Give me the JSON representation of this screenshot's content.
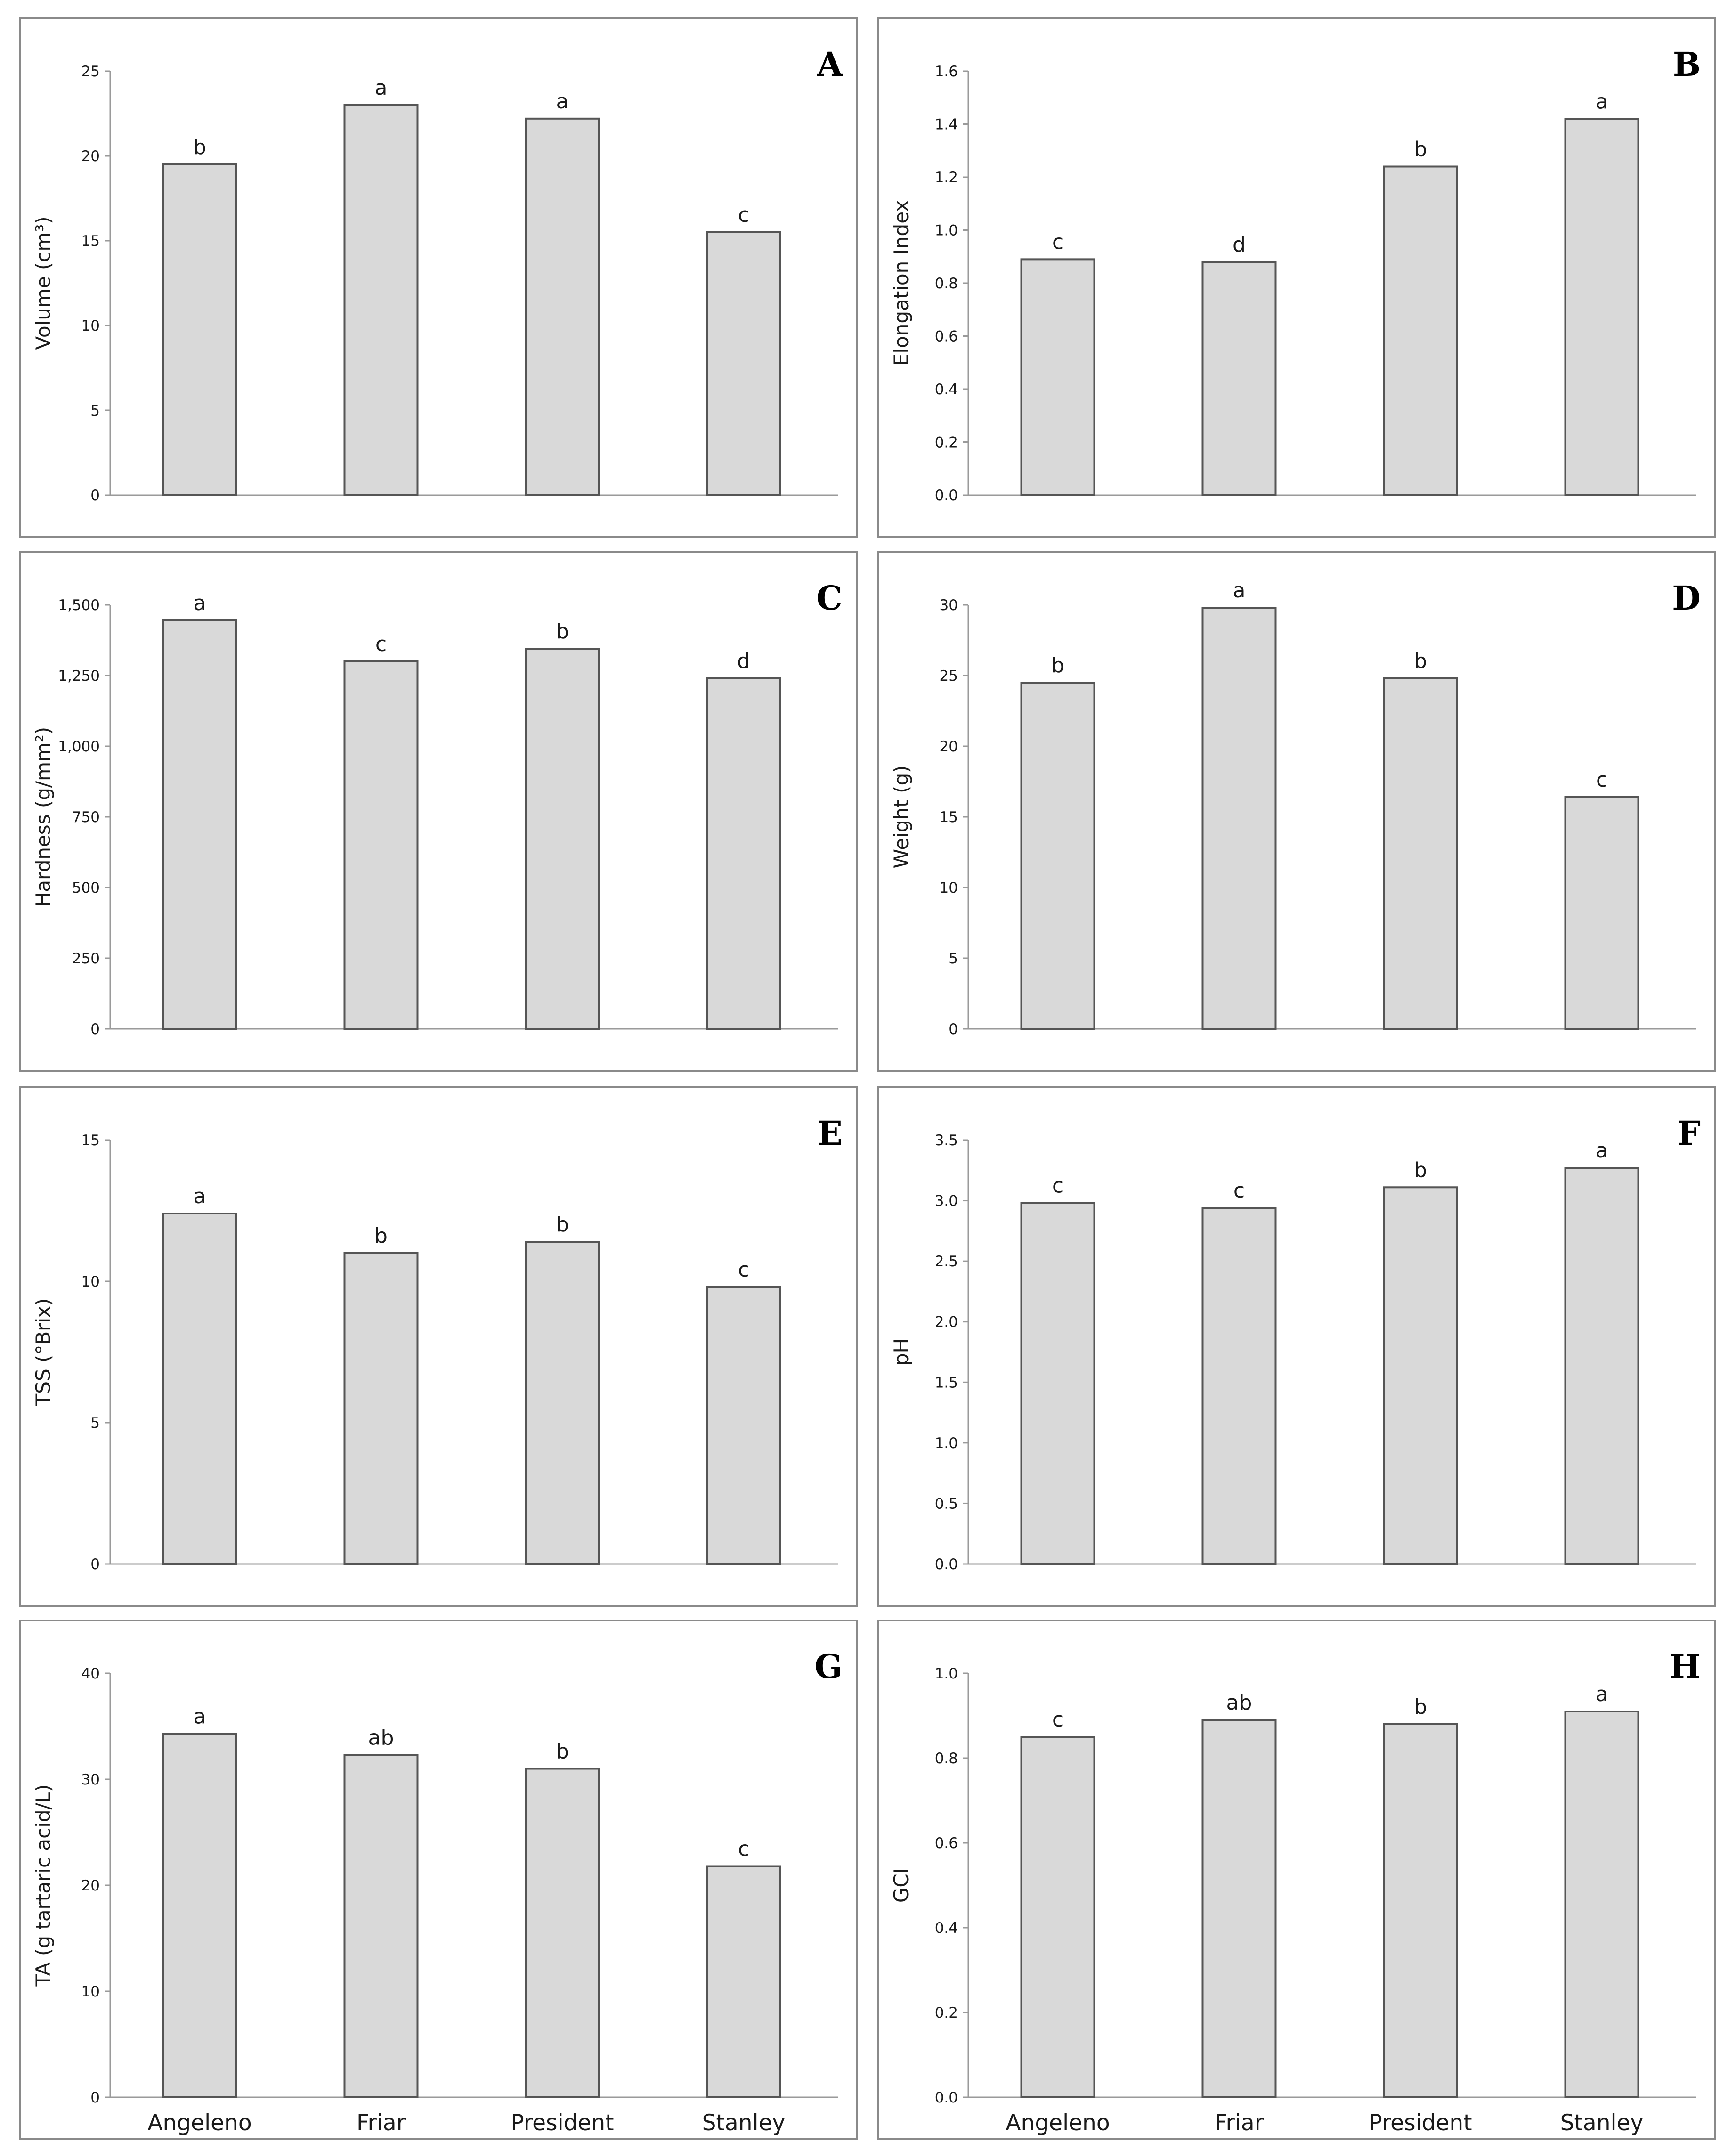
{
  "figure": {
    "categories": [
      "Angeleno",
      "Friar",
      "President",
      "Stanley"
    ]
  },
  "chart_data": [
    {
      "panel": "A",
      "type": "bar",
      "categories": [
        "Angeleno",
        "Friar",
        "President",
        "Stanley"
      ],
      "values": [
        19.5,
        23.0,
        22.2,
        15.5
      ],
      "significance": [
        "b",
        "a",
        "a",
        "c"
      ],
      "ylabel": "Volume (cm³)",
      "ylim": [
        0,
        25
      ],
      "yticks": [
        "0",
        "5",
        "10",
        "15",
        "20",
        "25"
      ],
      "ytick_values": [
        0,
        5,
        10,
        15,
        20,
        25
      ],
      "show_xticklabels": false
    },
    {
      "panel": "B",
      "type": "bar",
      "categories": [
        "Angeleno",
        "Friar",
        "President",
        "Stanley"
      ],
      "values": [
        0.89,
        0.88,
        1.24,
        1.42
      ],
      "significance": [
        "c",
        "d",
        "b",
        "a"
      ],
      "ylabel": "Elongation Index",
      "ylim": [
        0,
        1.6
      ],
      "yticks": [
        "0.0",
        "0.2",
        "0.4",
        "0.6",
        "0.8",
        "1.0",
        "1.2",
        "1.4",
        "1.6"
      ],
      "ytick_values": [
        0,
        0.2,
        0.4,
        0.6,
        0.8,
        1.0,
        1.2,
        1.4,
        1.6
      ],
      "show_xticklabels": false
    },
    {
      "panel": "C",
      "type": "bar",
      "categories": [
        "Angeleno",
        "Friar",
        "President",
        "Stanley"
      ],
      "values": [
        1445,
        1300,
        1345,
        1240
      ],
      "significance": [
        "a",
        "c",
        "b",
        "d"
      ],
      "ylabel": "Hardness (g/mm²)",
      "ylim": [
        0,
        1500
      ],
      "yticks": [
        "0",
        "250",
        "500",
        "750",
        "1,000",
        "1,250",
        "1,500"
      ],
      "ytick_values": [
        0,
        250,
        500,
        750,
        1000,
        1250,
        1500
      ],
      "show_xticklabels": false
    },
    {
      "panel": "D",
      "type": "bar",
      "categories": [
        "Angeleno",
        "Friar",
        "President",
        "Stanley"
      ],
      "values": [
        24.5,
        29.8,
        24.8,
        16.4
      ],
      "significance": [
        "b",
        "a",
        "b",
        "c"
      ],
      "ylabel": "Weight (g)",
      "ylim": [
        0,
        30
      ],
      "yticks": [
        "0",
        "5",
        "10",
        "15",
        "20",
        "25",
        "30"
      ],
      "ytick_values": [
        0,
        5,
        10,
        15,
        20,
        25,
        30
      ],
      "show_xticklabels": false
    },
    {
      "panel": "E",
      "type": "bar",
      "categories": [
        "Angeleno",
        "Friar",
        "President",
        "Stanley"
      ],
      "values": [
        12.4,
        11.0,
        11.4,
        9.8
      ],
      "significance": [
        "a",
        "b",
        "b",
        "c"
      ],
      "ylabel": "TSS (°Brix)",
      "ylim": [
        0,
        15
      ],
      "yticks": [
        "0",
        "5",
        "10",
        "15"
      ],
      "ytick_values": [
        0,
        5,
        10,
        15
      ],
      "show_xticklabels": false
    },
    {
      "panel": "F",
      "type": "bar",
      "categories": [
        "Angeleno",
        "Friar",
        "President",
        "Stanley"
      ],
      "values": [
        2.98,
        2.94,
        3.11,
        3.27
      ],
      "significance": [
        "c",
        "c",
        "b",
        "a"
      ],
      "ylabel": "pH",
      "ylim": [
        0,
        3.5
      ],
      "yticks": [
        "0.0",
        "0.5",
        "1.0",
        "1.5",
        "2.0",
        "2.5",
        "3.0",
        "3.5"
      ],
      "ytick_values": [
        0,
        0.5,
        1.0,
        1.5,
        2.0,
        2.5,
        3.0,
        3.5
      ],
      "show_xticklabels": false
    },
    {
      "panel": "G",
      "type": "bar",
      "categories": [
        "Angeleno",
        "Friar",
        "President",
        "Stanley"
      ],
      "values": [
        34.3,
        32.3,
        31.0,
        21.8
      ],
      "significance": [
        "a",
        "ab",
        "b",
        "c"
      ],
      "ylabel": "TA (g tartaric acid/L)",
      "ylim": [
        0,
        40
      ],
      "yticks": [
        "0",
        "10",
        "20",
        "30",
        "40"
      ],
      "ytick_values": [
        0,
        10,
        20,
        30,
        40
      ],
      "show_xticklabels": true
    },
    {
      "panel": "H",
      "type": "bar",
      "categories": [
        "Angeleno",
        "Friar",
        "President",
        "Stanley"
      ],
      "values": [
        0.85,
        0.89,
        0.88,
        0.91
      ],
      "significance": [
        "c",
        "ab",
        "b",
        "a"
      ],
      "ylabel": "GCI",
      "ylim": [
        0,
        1.0
      ],
      "yticks": [
        "0.0",
        "0.2",
        "0.4",
        "0.6",
        "0.8",
        "1.0"
      ],
      "ytick_values": [
        0,
        0.2,
        0.4,
        0.6,
        0.8,
        1.0
      ],
      "show_xticklabels": true
    }
  ]
}
